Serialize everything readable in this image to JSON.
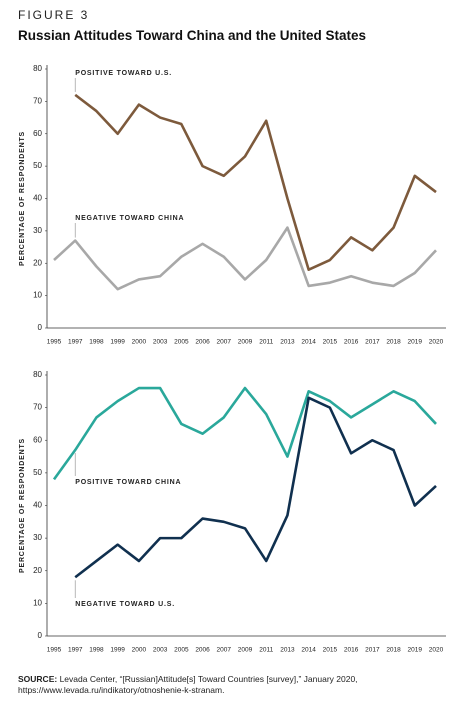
{
  "header": {
    "figure": "FIGURE 3",
    "title": "Russian Attitudes Toward China and the United States"
  },
  "chart_data": [
    {
      "type": "line",
      "y_label": "PERCENTAGE OF RESPONDENTS",
      "categories": [
        "1995",
        "1997",
        "1998",
        "1999",
        "2000",
        "2003",
        "2005",
        "2006",
        "2007",
        "2009",
        "2011",
        "2013",
        "2014",
        "2015",
        "2016",
        "2017",
        "2018",
        "2019",
        "2020"
      ],
      "ylim": [
        0,
        80
      ],
      "yticks": [
        0,
        10,
        20,
        30,
        40,
        50,
        60,
        70,
        80
      ],
      "series": [
        {
          "name": "POSITIVE TOWARD U.S.",
          "color": "#7d5a3c",
          "values": [
            null,
            72,
            67,
            60,
            69,
            65,
            63,
            50,
            47,
            53,
            64,
            40,
            18,
            21,
            28,
            24,
            31,
            47,
            42
          ]
        },
        {
          "name": "NEGATIVE TOWARD CHINA",
          "color": "#a8a8a8",
          "values": [
            21,
            27,
            19,
            12,
            15,
            16,
            22,
            26,
            22,
            15,
            21,
            31,
            13,
            14,
            16,
            14,
            13,
            17,
            24
          ]
        }
      ]
    },
    {
      "type": "line",
      "y_label": "PERCENTAGE OF RESPONDENTS",
      "categories": [
        "1995",
        "1997",
        "1998",
        "1999",
        "2000",
        "2003",
        "2005",
        "2006",
        "2007",
        "2009",
        "2011",
        "2013",
        "2014",
        "2015",
        "2016",
        "2017",
        "2018",
        "2019",
        "2020"
      ],
      "ylim": [
        0,
        80
      ],
      "yticks": [
        0,
        10,
        20,
        30,
        40,
        50,
        60,
        70,
        80
      ],
      "series": [
        {
          "name": "POSITIVE TOWARD CHINA",
          "color": "#2aa89b",
          "values": [
            48,
            57,
            67,
            72,
            76,
            76,
            65,
            62,
            67,
            76,
            68,
            55,
            75,
            72,
            67,
            71,
            75,
            72,
            65
          ]
        },
        {
          "name": "NEGATIVE TOWARD U.S.",
          "color": "#10304f",
          "values": [
            null,
            18,
            23,
            28,
            23,
            30,
            30,
            36,
            35,
            33,
            23,
            37,
            73,
            70,
            56,
            60,
            57,
            40,
            46
          ]
        }
      ]
    }
  ],
  "footer": {
    "label": "SOURCE:",
    "text": "Levada Center, “[Russian]Attitude[s] Toward Countries [survey],” January 2020, https://www.levada.ru/indikatory/otnoshenie-k-stranam."
  }
}
